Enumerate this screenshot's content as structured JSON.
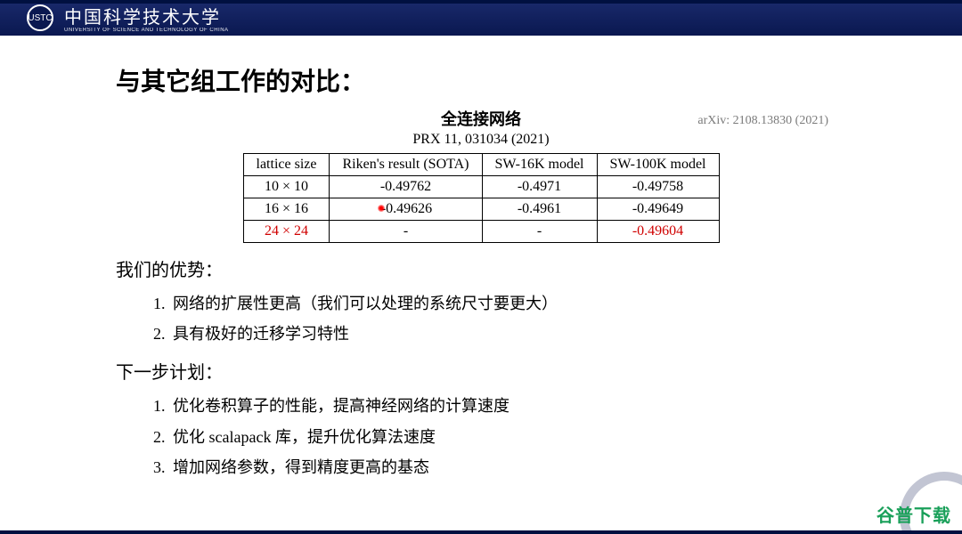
{
  "header": {
    "university_cn": "中国科学技术大学",
    "university_en": "UNIVERSITY OF SCIENCE AND TECHNOLOGY OF CHINA",
    "logo_text": "USTC",
    "bg_color": "#0a1850"
  },
  "slide": {
    "title": "与其它组工作的对比：",
    "table": {
      "caption_cn": "全连接网络",
      "caption_ref": "PRX 11, 031034 (2021)",
      "arxiv_note": "arXiv: 2108.13830 (2021)",
      "columns": [
        "lattice size",
        "Riken's result (SOTA)",
        "SW-16K model",
        "SW-100K model"
      ],
      "rows": [
        {
          "cells": [
            "10 × 10",
            "-0.49762",
            "-0.4971",
            "-0.49758"
          ],
          "highlight": false
        },
        {
          "cells": [
            "16 × 16",
            "-0.49626",
            "-0.4961",
            "-0.49649"
          ],
          "highlight": false,
          "laser_col": 1
        },
        {
          "cells": [
            "24 × 24",
            "-",
            "-",
            "-0.49604"
          ],
          "highlight": true
        }
      ],
      "border_color": "#000000",
      "highlight_color": "#d00000",
      "font_family": "Times New Roman",
      "header_fontsize": 16,
      "cell_fontsize": 16
    },
    "section1": {
      "heading": "我们的优势：",
      "items": [
        "网络的扩展性更高（我们可以处理的系统尺寸要更大）",
        "具有极好的迁移学习特性"
      ]
    },
    "section2": {
      "heading": "下一步计划：",
      "items": [
        "优化卷积算子的性能，提高神经网络的计算速度",
        "优化 scalapack 库，提升优化算法速度",
        "增加网络参数，得到精度更高的基态"
      ]
    }
  },
  "watermark": "谷普下载",
  "colors": {
    "background": "#ffffff",
    "text": "#000000",
    "watermark": "#1aa05a",
    "topbar_gradient_from": "#1a2a6c",
    "topbar_gradient_to": "#0a1850"
  },
  "typography": {
    "title_fontsize": 28,
    "body_fontsize": 18,
    "heading_fontsize": 20
  }
}
